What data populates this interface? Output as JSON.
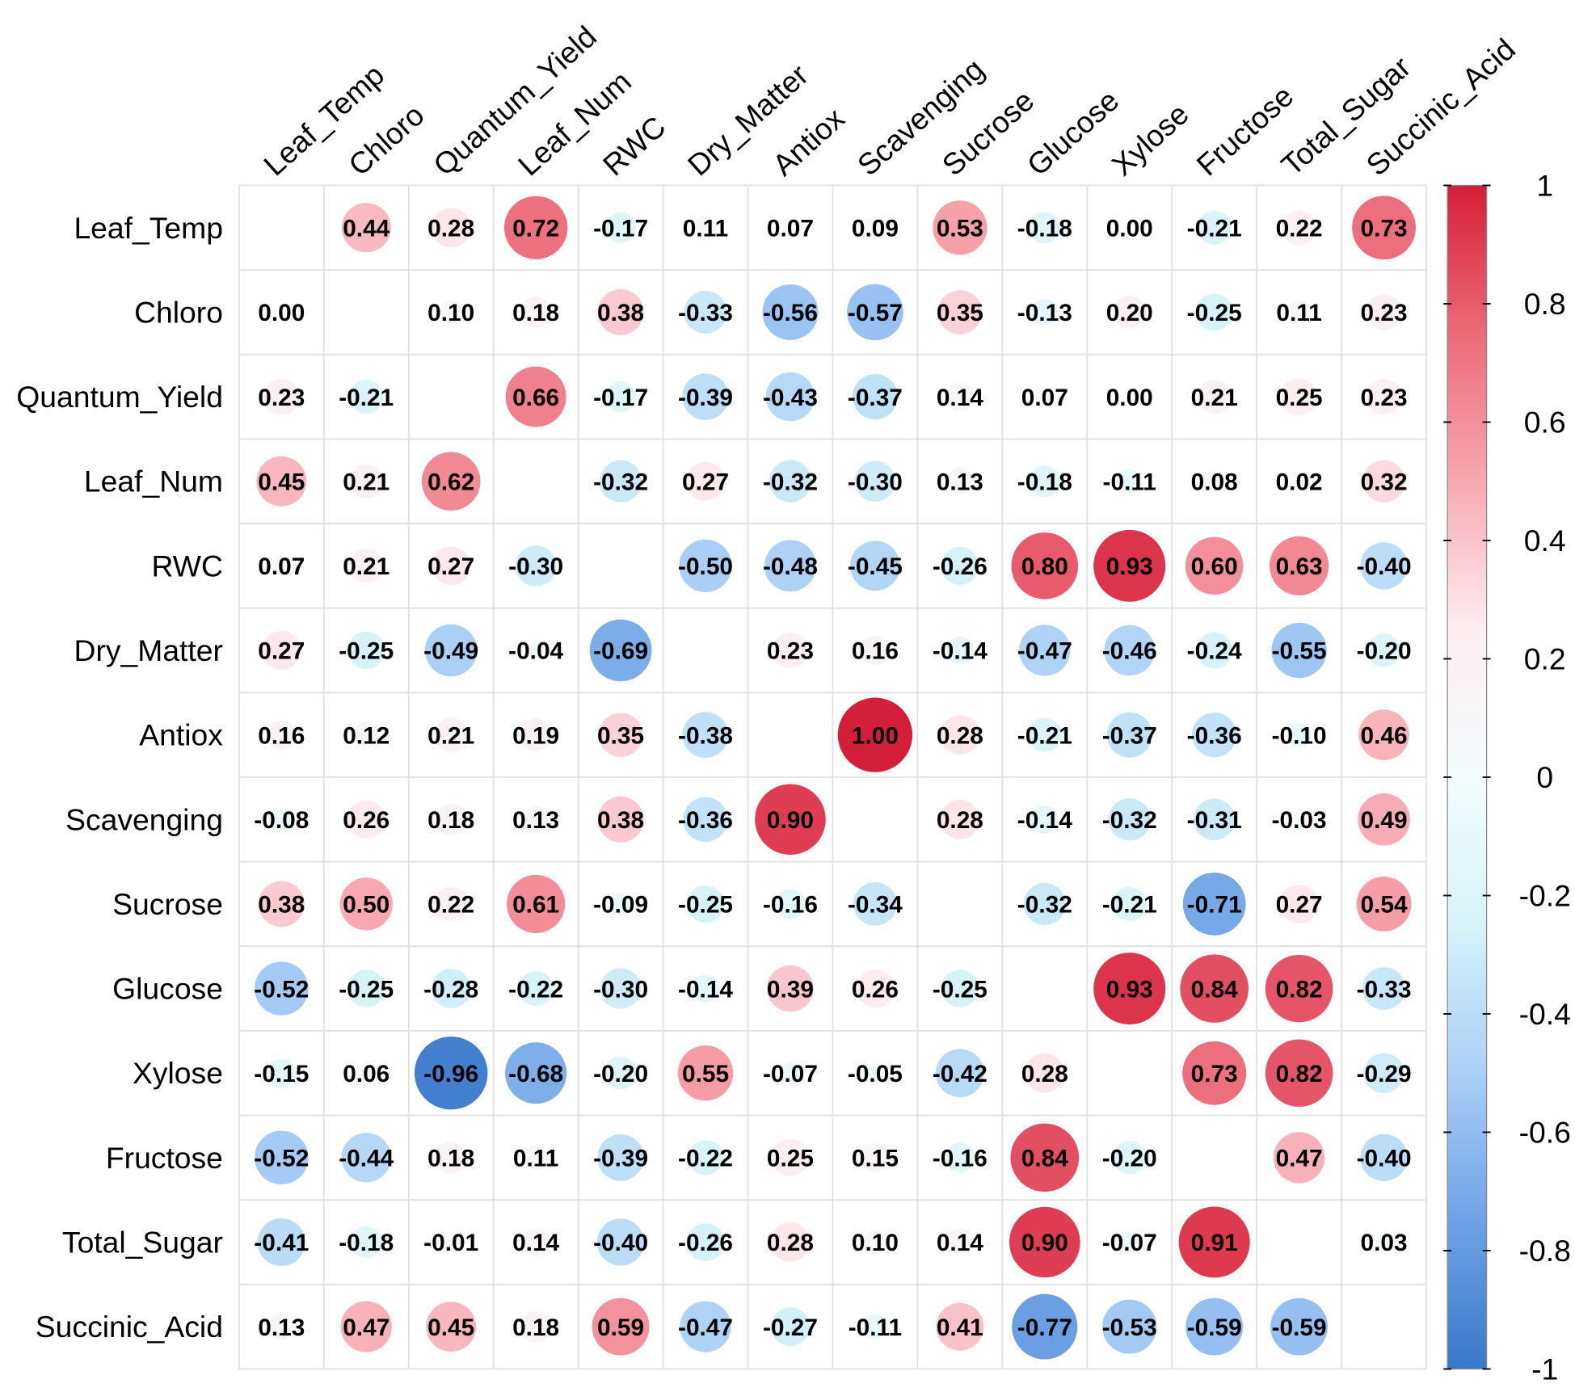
{
  "chart_data": {
    "type": "corrplot",
    "variables": [
      "Leaf_Temp",
      "Chloro",
      "Quantum_Yield",
      "Leaf_Num",
      "RWC",
      "Dry_Matter",
      "Antiox",
      "Scavenging",
      "Sucrose",
      "Glucose",
      "Xylose",
      "Fructose",
      "Total_Sugar",
      "Succinic_Acid"
    ],
    "values": [
      [
        null,
        0.44,
        0.28,
        0.72,
        -0.17,
        0.11,
        0.07,
        0.09,
        0.53,
        -0.18,
        0,
        -0.21,
        0.22,
        0.73
      ],
      [
        0,
        null,
        0.1,
        0.18,
        0.38,
        -0.33,
        -0.56,
        -0.57,
        0.35,
        -0.13,
        0.2,
        -0.25,
        0.11,
        0.23
      ],
      [
        0.23,
        -0.21,
        null,
        0.66,
        -0.17,
        -0.39,
        -0.43,
        -0.37,
        0.14,
        0.07,
        0,
        0.21,
        0.25,
        0.23
      ],
      [
        0.45,
        0.21,
        0.62,
        null,
        -0.32,
        0.27,
        -0.32,
        -0.3,
        0.13,
        -0.18,
        -0.11,
        0.08,
        0.02,
        0.32
      ],
      [
        0.07,
        0.21,
        0.27,
        -0.3,
        null,
        -0.5,
        -0.48,
        -0.45,
        -0.26,
        0.8,
        0.93,
        0.6,
        0.63,
        -0.4
      ],
      [
        0.27,
        -0.25,
        -0.49,
        -0.04,
        -0.69,
        null,
        0.23,
        0.16,
        -0.14,
        -0.47,
        -0.46,
        -0.24,
        -0.55,
        -0.2
      ],
      [
        0.16,
        0.12,
        0.21,
        0.19,
        0.35,
        -0.38,
        null,
        1,
        0.28,
        -0.21,
        -0.37,
        -0.36,
        -0.1,
        0.46
      ],
      [
        -0.08,
        0.26,
        0.18,
        0.13,
        0.38,
        -0.36,
        0.9,
        null,
        0.28,
        -0.14,
        -0.32,
        -0.31,
        -0.03,
        0.49
      ],
      [
        0.38,
        0.5,
        0.22,
        0.61,
        -0.09,
        -0.25,
        -0.16,
        -0.34,
        null,
        -0.32,
        -0.21,
        -0.71,
        0.27,
        0.54
      ],
      [
        -0.52,
        -0.25,
        -0.28,
        -0.22,
        -0.3,
        -0.14,
        0.39,
        0.26,
        -0.25,
        null,
        0.93,
        0.84,
        0.82,
        -0.33
      ],
      [
        -0.15,
        0.06,
        -0.96,
        -0.68,
        -0.2,
        0.55,
        -0.07,
        -0.05,
        -0.42,
        0.28,
        null,
        0.73,
        0.82,
        -0.29
      ],
      [
        -0.52,
        -0.44,
        0.18,
        0.11,
        -0.39,
        -0.22,
        0.25,
        0.15,
        -0.16,
        0.84,
        -0.2,
        null,
        0.47,
        -0.4
      ],
      [
        -0.41,
        -0.18,
        -0.01,
        0.14,
        -0.4,
        -0.26,
        0.28,
        0.1,
        0.14,
        0.9,
        -0.07,
        0.91,
        null,
        0.03
      ],
      [
        0.13,
        0.47,
        0.45,
        0.18,
        0.59,
        -0.47,
        -0.27,
        -0.11,
        0.41,
        -0.77,
        -0.53,
        -0.59,
        -0.59,
        null
      ]
    ],
    "value_labels": [
      [
        null,
        "0.44",
        "0.28",
        "0.72",
        "-0.17",
        "0.11",
        "0.07",
        "0.09",
        "0.53",
        "-0.18",
        "0.00",
        "-0.21",
        "0.22",
        "0.73"
      ],
      [
        "0.00",
        null,
        "0.10",
        "0.18",
        "0.38",
        "-0.33",
        "-0.56",
        "-0.57",
        "0.35",
        "-0.13",
        "0.20",
        "-0.25",
        "0.11",
        "0.23"
      ],
      [
        "0.23",
        "-0.21",
        null,
        "0.66",
        "-0.17",
        "-0.39",
        "-0.43",
        "-0.37",
        "0.14",
        "0.07",
        "0.00",
        "0.21",
        "0.25",
        "0.23"
      ],
      [
        "0.45",
        "0.21",
        "0.62",
        null,
        "-0.32",
        "0.27",
        "-0.32",
        "-0.30",
        "0.13",
        "-0.18",
        "-0.11",
        "0.08",
        "0.02",
        "0.32"
      ],
      [
        "0.07",
        "0.21",
        "0.27",
        "-0.30",
        null,
        "-0.50",
        "-0.48",
        "-0.45",
        "-0.26",
        "0.80",
        "0.93",
        "0.60",
        "0.63",
        "-0.40"
      ],
      [
        "0.27",
        "-0.25",
        "-0.49",
        "-0.04",
        "-0.69",
        null,
        "0.23",
        "0.16",
        "-0.14",
        "-0.47",
        "-0.46",
        "-0.24",
        "-0.55",
        "-0.20"
      ],
      [
        "0.16",
        "0.12",
        "0.21",
        "0.19",
        "0.35",
        "-0.38",
        null,
        "1.00",
        "0.28",
        "-0.21",
        "-0.37",
        "-0.36",
        "-0.10",
        "0.46"
      ],
      [
        "-0.08",
        "0.26",
        "0.18",
        "0.13",
        "0.38",
        "-0.36",
        "0.90",
        null,
        "0.28",
        "-0.14",
        "-0.32",
        "-0.31",
        "-0.03",
        "0.49"
      ],
      [
        "0.38",
        "0.50",
        "0.22",
        "0.61",
        "-0.09",
        "-0.25",
        "-0.16",
        "-0.34",
        null,
        "-0.32",
        "-0.21",
        "-0.71",
        "0.27",
        "0.54"
      ],
      [
        "-0.52",
        "-0.25",
        "-0.28",
        "-0.22",
        "-0.30",
        "-0.14",
        "0.39",
        "0.26",
        "-0.25",
        null,
        "0.93",
        "0.84",
        "0.82",
        "-0.33"
      ],
      [
        "-0.15",
        "0.06",
        "-0.96",
        "-0.68",
        "-0.20",
        "0.55",
        "-0.07",
        "-0.05",
        "-0.42",
        "0.28",
        null,
        "0.73",
        "0.82",
        "-0.29"
      ],
      [
        "-0.52",
        "-0.44",
        "0.18",
        "0.11",
        "-0.39",
        "-0.22",
        "0.25",
        "0.15",
        "-0.16",
        "0.84",
        "-0.20",
        null,
        "0.47",
        "-0.40"
      ],
      [
        "-0.41",
        "-0.18",
        "-0.01",
        "0.14",
        "-0.40",
        "-0.26",
        "0.28",
        "0.10",
        "0.14",
        "0.90",
        "-0.07",
        "0.91",
        null,
        "0.03"
      ],
      [
        "0.13",
        "0.47",
        "0.45",
        "0.18",
        "0.59",
        "-0.47",
        "-0.27",
        "-0.11",
        "0.41",
        "-0.77",
        "-0.53",
        "-0.59",
        "-0.59",
        null
      ]
    ],
    "zlim": [
      -1,
      1
    ],
    "zticks": [
      1,
      0.8,
      0.6,
      0.4,
      0.2,
      0,
      -0.2,
      -0.4,
      -0.6,
      -0.8,
      -1
    ],
    "colors": [
      "#3a78c9",
      "#6ea2e6",
      "#a9cff6",
      "#d6f3f8",
      "#f3fcfc",
      "#fdeef2",
      "#f7a8b1",
      "#ec6a78",
      "#d41f3a"
    ]
  }
}
